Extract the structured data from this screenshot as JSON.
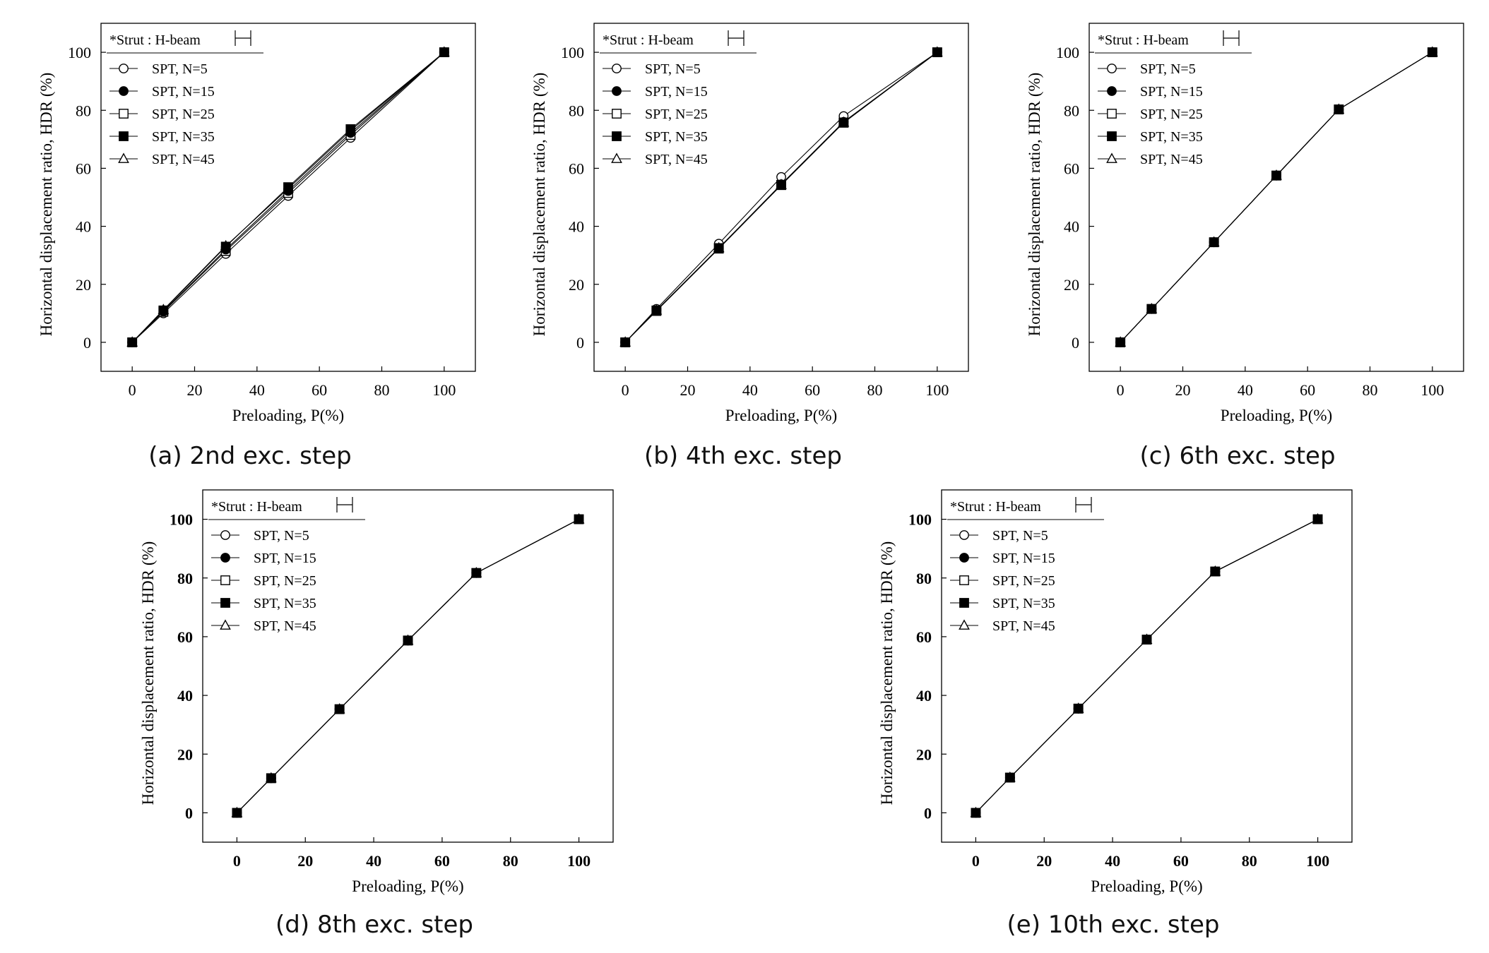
{
  "figure": {
    "captions": [
      "(a) 2nd exc. step",
      "(b) 4th exc. step",
      "(c) 6th exc. step",
      "(d) 8th exc. step",
      "(e) 10th exc. step"
    ]
  },
  "chart_data": [
    {
      "panel": "a",
      "type": "line",
      "title": "",
      "xlabel": "Preloading, P(%)",
      "ylabel": "Horizontal displacement ratio, HDR  (%)",
      "xlim": [
        -10,
        110
      ],
      "ylim": [
        -10,
        110
      ],
      "xticks": [
        0,
        20,
        40,
        60,
        80,
        100
      ],
      "yticks": [
        0,
        20,
        40,
        60,
        80,
        100
      ],
      "grid": false,
      "legend_position": "top-left",
      "legend_header": "*Strut : H-beam",
      "x": [
        0,
        10,
        30,
        50,
        70,
        100
      ],
      "series": [
        {
          "name": "SPT, N=5",
          "marker": "circle-open",
          "values": [
            0,
            10,
            30.5,
            50.5,
            70.5,
            100
          ]
        },
        {
          "name": "SPT, N=15",
          "marker": "circle-filled",
          "values": [
            0,
            10.7,
            32,
            52.2,
            72.2,
            100
          ]
        },
        {
          "name": "SPT, N=25",
          "marker": "square-open",
          "values": [
            0,
            10.5,
            31.5,
            51.5,
            71.5,
            100
          ]
        },
        {
          "name": "SPT, N=35",
          "marker": "square-filled",
          "values": [
            0,
            11,
            33,
            53.5,
            73.5,
            100
          ]
        },
        {
          "name": "SPT, N=45",
          "marker": "triangle-open",
          "values": [
            0,
            11.2,
            33.2,
            53,
            73,
            100
          ]
        }
      ]
    },
    {
      "panel": "b",
      "type": "line",
      "title": "",
      "xlabel": "Preloading, P(%)",
      "ylabel": "Horizontal displacement ratio, HDR  (%)",
      "xlim": [
        -10,
        110
      ],
      "ylim": [
        -10,
        110
      ],
      "xticks": [
        0,
        20,
        40,
        60,
        80,
        100
      ],
      "yticks": [
        0,
        20,
        40,
        60,
        80,
        100
      ],
      "grid": false,
      "legend_position": "top-left",
      "legend_header": "*Strut : H-beam",
      "x": [
        0,
        10,
        30,
        50,
        70,
        100
      ],
      "series": [
        {
          "name": "SPT, N=5",
          "marker": "circle-open",
          "values": [
            0,
            11.5,
            34,
            57,
            78,
            100
          ]
        },
        {
          "name": "SPT, N=15",
          "marker": "circle-filled",
          "values": [
            0,
            11,
            32.5,
            54.5,
            76,
            100
          ]
        },
        {
          "name": "SPT, N=25",
          "marker": "square-open",
          "values": [
            0,
            11,
            32.5,
            54.3,
            75.8,
            100
          ]
        },
        {
          "name": "SPT, N=35",
          "marker": "square-filled",
          "values": [
            0,
            10.8,
            32.3,
            54.2,
            75.7,
            100
          ]
        },
        {
          "name": "SPT, N=45",
          "marker": "triangle-open",
          "values": [
            0,
            11,
            32.5,
            54.3,
            75.8,
            100
          ]
        }
      ]
    },
    {
      "panel": "c",
      "type": "line",
      "title": "",
      "xlabel": "Preloading, P(%)",
      "ylabel": "Horizontal displacement ratio, HDR  (%)",
      "xlim": [
        -10,
        110
      ],
      "ylim": [
        -10,
        110
      ],
      "xticks": [
        0,
        20,
        40,
        60,
        80,
        100
      ],
      "yticks": [
        0,
        20,
        40,
        60,
        80,
        100
      ],
      "grid": false,
      "legend_position": "top-left",
      "legend_header": "*Strut : H-beam",
      "x": [
        0,
        10,
        30,
        50,
        70,
        100
      ],
      "series": [
        {
          "name": "SPT, N=5",
          "marker": "circle-open",
          "values": [
            0,
            11.5,
            34.5,
            57.5,
            80.3,
            100
          ]
        },
        {
          "name": "SPT, N=15",
          "marker": "circle-filled",
          "values": [
            0,
            11.5,
            34.5,
            57.5,
            80.3,
            100
          ]
        },
        {
          "name": "SPT, N=25",
          "marker": "square-open",
          "values": [
            0,
            11.5,
            34.5,
            57.5,
            80.3,
            100
          ]
        },
        {
          "name": "SPT, N=35",
          "marker": "square-filled",
          "values": [
            0,
            11.5,
            34.5,
            57.5,
            80.3,
            100
          ]
        },
        {
          "name": "SPT, N=45",
          "marker": "triangle-open",
          "values": [
            0,
            11.5,
            34.5,
            57.5,
            80.3,
            100
          ]
        }
      ]
    },
    {
      "panel": "d",
      "type": "line",
      "title": "",
      "xlabel": "Preloading, P(%)",
      "ylabel": "Horizontal displacement ratio, HDR  (%)",
      "xlim": [
        -10,
        110
      ],
      "ylim": [
        -10,
        110
      ],
      "xticks": [
        0,
        20,
        40,
        60,
        80,
        100
      ],
      "yticks": [
        0,
        20,
        40,
        60,
        80,
        100
      ],
      "grid": false,
      "legend_position": "top-left",
      "legend_header": "*Strut : H-beam",
      "x": [
        0,
        10,
        30,
        50,
        70,
        100
      ],
      "series": [
        {
          "name": "SPT, N=5",
          "marker": "circle-open",
          "values": [
            0,
            11.8,
            35.3,
            58.7,
            81.7,
            100
          ]
        },
        {
          "name": "SPT, N=15",
          "marker": "circle-filled",
          "values": [
            0,
            11.8,
            35.3,
            58.7,
            81.7,
            100
          ]
        },
        {
          "name": "SPT, N=25",
          "marker": "square-open",
          "values": [
            0,
            11.8,
            35.3,
            58.7,
            81.7,
            100
          ]
        },
        {
          "name": "SPT, N=35",
          "marker": "square-filled",
          "values": [
            0,
            11.8,
            35.3,
            58.7,
            81.7,
            100
          ]
        },
        {
          "name": "SPT, N=45",
          "marker": "triangle-open",
          "values": [
            0,
            11.8,
            35.3,
            58.7,
            81.7,
            100
          ]
        }
      ]
    },
    {
      "panel": "e",
      "type": "line",
      "title": "",
      "xlabel": "Preloading, P(%)",
      "ylabel": "Horizontal displacement ratio, HDR  (%)",
      "xlim": [
        -10,
        110
      ],
      "ylim": [
        -10,
        110
      ],
      "xticks": [
        0,
        20,
        40,
        60,
        80,
        100
      ],
      "yticks": [
        0,
        20,
        40,
        60,
        80,
        100
      ],
      "grid": false,
      "legend_position": "top-left",
      "legend_header": "*Strut : H-beam",
      "x": [
        0,
        10,
        30,
        50,
        70,
        100
      ],
      "series": [
        {
          "name": "SPT, N=5",
          "marker": "circle-open",
          "values": [
            0,
            12,
            35.5,
            59,
            82.2,
            100
          ]
        },
        {
          "name": "SPT, N=15",
          "marker": "circle-filled",
          "values": [
            0,
            12,
            35.5,
            59,
            82.2,
            100
          ]
        },
        {
          "name": "SPT, N=25",
          "marker": "square-open",
          "values": [
            0,
            12,
            35.5,
            59,
            82.2,
            100
          ]
        },
        {
          "name": "SPT, N=35",
          "marker": "square-filled",
          "values": [
            0,
            12,
            35.5,
            59,
            82.2,
            100
          ]
        },
        {
          "name": "SPT, N=45",
          "marker": "triangle-open",
          "values": [
            0,
            12,
            35.5,
            59,
            82.2,
            100
          ]
        }
      ]
    }
  ]
}
